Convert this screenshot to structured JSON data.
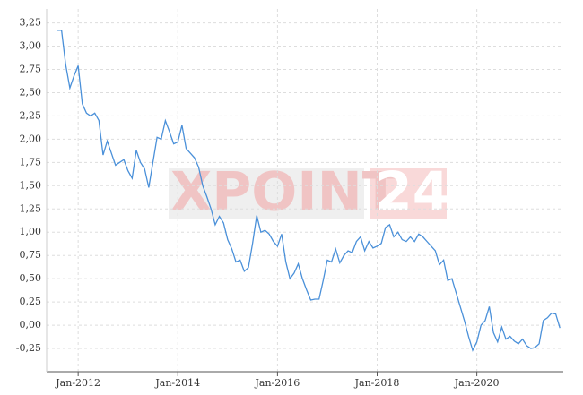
{
  "chart_data": {
    "type": "line",
    "watermark": [
      "XPOINT",
      "24"
    ],
    "x": [
      "Aug-2011",
      "Sep-2011",
      "Oct-2011",
      "Nov-2011",
      "Dec-2011",
      "Jan-2012",
      "Feb-2012",
      "Mar-2012",
      "Apr-2012",
      "May-2012",
      "Jun-2012",
      "Jul-2012",
      "Aug-2012",
      "Sep-2012",
      "Oct-2012",
      "Nov-2012",
      "Dec-2012",
      "Jan-2013",
      "Feb-2013",
      "Mar-2013",
      "Apr-2013",
      "May-2013",
      "Jun-2013",
      "Jul-2013",
      "Aug-2013",
      "Sep-2013",
      "Oct-2013",
      "Nov-2013",
      "Dec-2013",
      "Jan-2014",
      "Feb-2014",
      "Mar-2014",
      "Apr-2014",
      "May-2014",
      "Jun-2014",
      "Jul-2014",
      "Aug-2014",
      "Sep-2014",
      "Oct-2014",
      "Nov-2014",
      "Dec-2014",
      "Jan-2015",
      "Feb-2015",
      "Mar-2015",
      "Apr-2015",
      "May-2015",
      "Jun-2015",
      "Jul-2015",
      "Aug-2015",
      "Sep-2015",
      "Oct-2015",
      "Nov-2015",
      "Dec-2015",
      "Jan-2016",
      "Feb-2016",
      "Mar-2016",
      "Apr-2016",
      "May-2016",
      "Jun-2016",
      "Jul-2016",
      "Aug-2016",
      "Sep-2016",
      "Oct-2016",
      "Nov-2016",
      "Dec-2016",
      "Jan-2017",
      "Feb-2017",
      "Mar-2017",
      "Apr-2017",
      "May-2017",
      "Jun-2017",
      "Jul-2017",
      "Aug-2017",
      "Sep-2017",
      "Oct-2017",
      "Nov-2017",
      "Dec-2017",
      "Jan-2018",
      "Feb-2018",
      "Mar-2018",
      "Apr-2018",
      "May-2018",
      "Jun-2018",
      "Jul-2018",
      "Aug-2018",
      "Sep-2018",
      "Oct-2018",
      "Nov-2018",
      "Dec-2018",
      "Jan-2019",
      "Feb-2019",
      "Mar-2019",
      "Apr-2019",
      "May-2019",
      "Jun-2019",
      "Jul-2019",
      "Aug-2019",
      "Sep-2019",
      "Oct-2019",
      "Nov-2019",
      "Dec-2019",
      "Jan-2020",
      "Feb-2020",
      "Mar-2020",
      "Apr-2020",
      "May-2020",
      "Jun-2020",
      "Jul-2020",
      "Aug-2020",
      "Sep-2020",
      "Oct-2020",
      "Nov-2020",
      "Dec-2020",
      "Jan-2021",
      "Feb-2021",
      "Mar-2021",
      "Apr-2021",
      "May-2021",
      "Jun-2021",
      "Jul-2021",
      "Aug-2021",
      "Sep-2021"
    ],
    "series": [
      {
        "color": "#4a90d9",
        "values": [
          3.17,
          3.17,
          2.8,
          2.55,
          2.68,
          2.79,
          2.38,
          2.28,
          2.25,
          2.28,
          2.2,
          1.83,
          1.98,
          1.85,
          1.72,
          1.75,
          1.78,
          1.66,
          1.58,
          1.88,
          1.75,
          1.68,
          1.48,
          1.75,
          2.02,
          2.0,
          2.2,
          2.08,
          1.95,
          1.97,
          2.15,
          1.9,
          1.85,
          1.8,
          1.7,
          1.5,
          1.38,
          1.25,
          1.08,
          1.17,
          1.1,
          0.92,
          0.82,
          0.68,
          0.7,
          0.58,
          0.62,
          0.88,
          1.18,
          1.0,
          1.02,
          0.98,
          0.9,
          0.85,
          0.98,
          0.68,
          0.5,
          0.56,
          0.66,
          0.5,
          0.38,
          0.27,
          0.28,
          0.28,
          0.48,
          0.7,
          0.68,
          0.82,
          0.67,
          0.75,
          0.8,
          0.78,
          0.9,
          0.95,
          0.8,
          0.9,
          0.83,
          0.85,
          0.88,
          1.05,
          1.08,
          0.95,
          1.0,
          0.92,
          0.9,
          0.95,
          0.9,
          0.98,
          0.95,
          0.9,
          0.85,
          0.8,
          0.65,
          0.7,
          0.48,
          0.5,
          0.35,
          0.2,
          0.05,
          -0.12,
          -0.27,
          -0.18,
          0.0,
          0.05,
          0.2,
          -0.08,
          -0.18,
          -0.02,
          -0.15,
          -0.12,
          -0.17,
          -0.2,
          -0.15,
          -0.22,
          -0.25,
          -0.24,
          -0.2,
          0.05,
          0.08,
          0.13,
          0.12,
          -0.03
        ]
      }
    ],
    "xticks": [
      "Jan-2012",
      "Jan-2014",
      "Jan-2016",
      "Jan-2018",
      "Jan-2020"
    ],
    "ylim": [
      -0.5,
      3.4
    ],
    "yticks": [
      {
        "value": -0.25,
        "label": "-0,25"
      },
      {
        "value": 0,
        "label": "0,00"
      },
      {
        "value": 0.25,
        "label": "0,25"
      },
      {
        "value": 0.5,
        "label": "0,50"
      },
      {
        "value": 0.75,
        "label": "0,75"
      },
      {
        "value": 1,
        "label": "1,00"
      },
      {
        "value": 1.25,
        "label": "1,25"
      },
      {
        "value": 1.5,
        "label": "1,50"
      },
      {
        "value": 1.75,
        "label": "1,75"
      },
      {
        "value": 2,
        "label": "2,00"
      },
      {
        "value": 2.25,
        "label": "2,25"
      },
      {
        "value": 2.5,
        "label": "2,50"
      },
      {
        "value": 2.75,
        "label": "2,75"
      },
      {
        "value": 3,
        "label": "3,00"
      },
      {
        "value": 3.25,
        "label": "3,25"
      }
    ],
    "grid": true
  }
}
